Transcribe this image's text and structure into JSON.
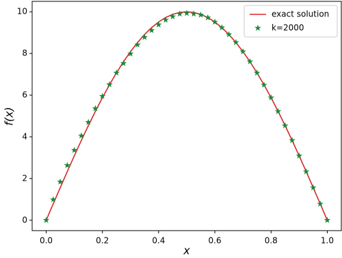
{
  "chart_data": {
    "type": "line",
    "xlabel": "x",
    "ylabel": "f(x)",
    "xlim": [
      -0.05,
      1.05
    ],
    "ylim": [
      -0.5,
      10.5
    ],
    "xticks": [
      {
        "value": 0,
        "label": "0.0"
      },
      0.2,
      0.4,
      0.6,
      0.8,
      {
        "value": 1,
        "label": "1.0"
      }
    ],
    "yticks": [
      0,
      2,
      4,
      6,
      8,
      10
    ],
    "grid": false,
    "legend": "upper right",
    "series": [
      {
        "name": "exact solution",
        "color": "#d62728",
        "marker": "line",
        "x": [
          0,
          0.025,
          0.05,
          0.075,
          0.1,
          0.125,
          0.15,
          0.175,
          0.2,
          0.225,
          0.25,
          0.275,
          0.3,
          0.325,
          0.35,
          0.375,
          0.4,
          0.425,
          0.45,
          0.475,
          0.5,
          0.525,
          0.55,
          0.575,
          0.6,
          0.625,
          0.65,
          0.675,
          0.7,
          0.725,
          0.75,
          0.775,
          0.8,
          0.825,
          0.85,
          0.875,
          0.9,
          0.925,
          0.95,
          0.975,
          1
        ],
        "values": [
          0,
          0.785,
          1.564,
          2.334,
          3.09,
          3.827,
          4.54,
          5.225,
          5.878,
          6.494,
          7.071,
          7.604,
          8.09,
          8.526,
          8.91,
          9.239,
          9.511,
          9.724,
          9.877,
          9.969,
          10,
          9.969,
          9.877,
          9.724,
          9.511,
          9.239,
          8.91,
          8.526,
          8.09,
          7.604,
          7.071,
          6.494,
          5.878,
          5.225,
          4.54,
          3.827,
          3.09,
          2.334,
          1.564,
          0.785,
          0
        ]
      },
      {
        "name": "k=2000",
        "color": "#1a8a3a",
        "marker": "star",
        "x": [
          0,
          0.025,
          0.05,
          0.075,
          0.1,
          0.125,
          0.15,
          0.175,
          0.2,
          0.225,
          0.25,
          0.275,
          0.3,
          0.325,
          0.35,
          0.375,
          0.4,
          0.425,
          0.45,
          0.475,
          0.5,
          0.525,
          0.55,
          0.575,
          0.6,
          0.625,
          0.65,
          0.675,
          0.7,
          0.725,
          0.75,
          0.775,
          0.8,
          0.825,
          0.85,
          0.875,
          0.9,
          0.925,
          0.95,
          0.975,
          1
        ],
        "values": [
          0,
          0.99,
          1.84,
          2.63,
          3.36,
          4.05,
          4.7,
          5.36,
          5.95,
          6.51,
          7.07,
          7.53,
          7.99,
          8.42,
          8.78,
          9.11,
          9.38,
          9.61,
          9.77,
          9.9,
          9.93,
          9.9,
          9.85,
          9.72,
          9.51,
          9.24,
          8.91,
          8.53,
          8.09,
          7.61,
          7.07,
          6.49,
          5.88,
          5.22,
          4.54,
          3.83,
          3.09,
          2.33,
          1.56,
          0.78,
          0
        ]
      }
    ]
  }
}
